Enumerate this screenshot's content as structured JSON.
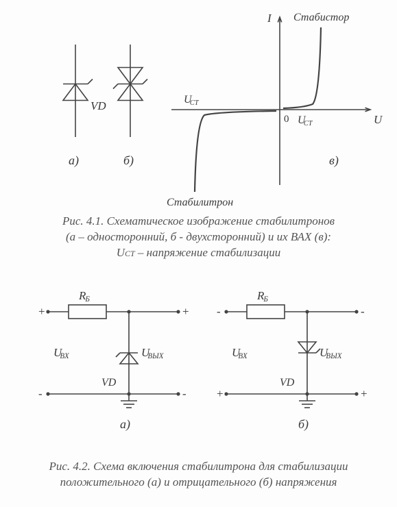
{
  "fig1": {
    "symbol_label": "VD",
    "sub_labels": [
      "а)",
      "б)",
      "в)"
    ],
    "axis": {
      "y": "I",
      "x": "U",
      "origin": "0"
    },
    "labels": {
      "uct": "U",
      "uct_sub": "СТ",
      "stabistor": "Стабистор",
      "stabilitron": "Стабилитрон"
    },
    "caption_lines": [
      "Рис. 4.1. Схематическое изображение стабилитронов",
      "(а – односторонний, б - двухсторонний) и их ВАХ (в):",
      "U_CT – напряжение стабилизации"
    ],
    "uct_inline": "U",
    "uct_inline_sub": "СТ"
  },
  "fig2": {
    "rb": "R",
    "rb_sub": "Б",
    "uin": "U",
    "uin_sub": "ВХ",
    "uout": "U",
    "uout_sub": "ВЫХ",
    "vd": "VD",
    "polarity_a": {
      "left_top": "+",
      "right_top": "+",
      "left_bot": "-",
      "right_bot": "-"
    },
    "polarity_b": {
      "left_top": "-",
      "right_top": "-",
      "left_bot": "+",
      "right_bot": "+"
    },
    "sub_labels": [
      "а)",
      "б)"
    ],
    "caption_lines": [
      "Рис. 4.2. Схема включения стабилитрона для стабилизации",
      "положительного (а) и отрицательного (б) напряжения"
    ]
  },
  "style": {
    "stroke": "#434343",
    "stroke_w": 1.6,
    "text": "#3a3a3a",
    "node_r": 2.6
  }
}
